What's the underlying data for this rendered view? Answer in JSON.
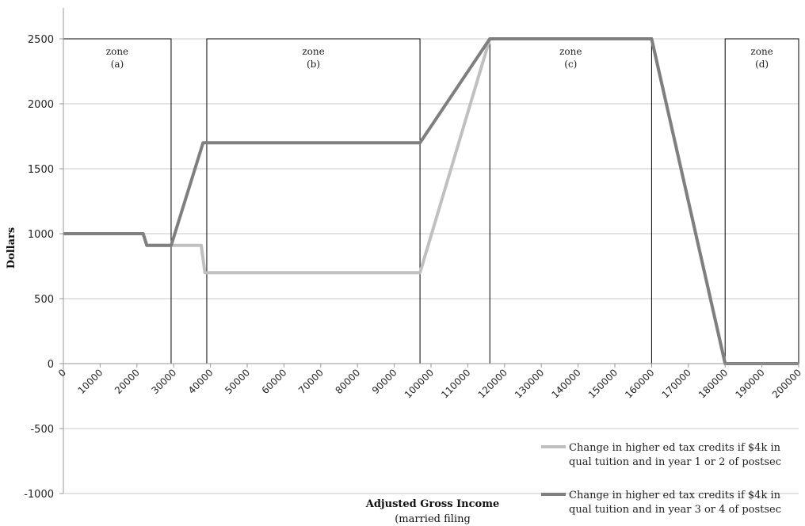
{
  "chart_data": {
    "type": "line",
    "xlabel": "Adjusted Gross Income",
    "xlabel_note": "(married filing",
    "ylabel": "Dollars",
    "xlim": [
      0,
      200000
    ],
    "ylim": [
      -1000,
      2500
    ],
    "yticks": [
      -1000,
      -500,
      0,
      500,
      1000,
      1500,
      2000,
      2500
    ],
    "xticks": [
      0,
      10000,
      20000,
      30000,
      40000,
      50000,
      60000,
      70000,
      80000,
      90000,
      100000,
      110000,
      120000,
      130000,
      140000,
      150000,
      160000,
      170000,
      180000,
      190000,
      200000
    ],
    "grid": "horizontal",
    "legend_position": "bottom-right",
    "series": [
      {
        "name_lines": [
          "Change in higher ed tax credits if $4k in",
          "qual tuition and in year 1 or 2 of postsec"
        ],
        "color": "#c0c0c0",
        "points": [
          [
            0,
            1000
          ],
          [
            21700,
            1000
          ],
          [
            22700,
            910
          ],
          [
            37500,
            910
          ],
          [
            38500,
            700
          ],
          [
            97000,
            700
          ],
          [
            116000,
            2500
          ],
          [
            160000,
            2500
          ],
          [
            180000,
            0
          ],
          [
            200000,
            0
          ]
        ]
      },
      {
        "name_lines": [
          "Change in higher ed tax credits if $4k in",
          "qual tuition and in year 3 or 4 of postsec"
        ],
        "color": "#7f7f7f",
        "points": [
          [
            0,
            1000
          ],
          [
            21700,
            1000
          ],
          [
            22700,
            910
          ],
          [
            29300,
            910
          ],
          [
            38000,
            1700
          ],
          [
            97000,
            1700
          ],
          [
            116000,
            2500
          ],
          [
            160000,
            2500
          ],
          [
            180000,
            0
          ],
          [
            200000,
            0
          ]
        ]
      }
    ],
    "zones": [
      {
        "line1": "zone",
        "line2": "(a)",
        "x0": 0,
        "x1": 29300
      },
      {
        "line1": "zone",
        "line2": "(b)",
        "x0": 39000,
        "x1": 97000
      },
      {
        "line1": "zone",
        "line2": "(c)",
        "x0": 116000,
        "x1": 160000
      },
      {
        "line1": "zone",
        "line2": "(d)",
        "x0": 180000,
        "x1": 200000
      }
    ]
  }
}
